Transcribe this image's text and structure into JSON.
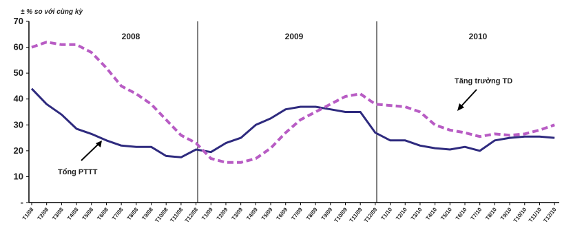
{
  "chart_data": {
    "type": "line",
    "ylabel": "± % so với cùng kỳ",
    "ylim": [
      0,
      70
    ],
    "yticks": [
      "-",
      "10",
      "20",
      "30",
      "40",
      "50",
      "60",
      "70"
    ],
    "year_labels": [
      "2008",
      "2009",
      "2010"
    ],
    "x": [
      "T1/08",
      "T2/08",
      "T3/08",
      "T4/08",
      "T5/08",
      "T6/08",
      "T7/08",
      "T8/08",
      "T9/08",
      "T10/08",
      "T11/08",
      "T12/08",
      "T1/09",
      "T2/09",
      "T3/09",
      "T4/09",
      "T5/09",
      "T6/09",
      "T7/09",
      "T8/09",
      "T9/09",
      "T10/09",
      "T11/09",
      "T12/09",
      "T1/10",
      "T2/10",
      "T3/10",
      "T4/10",
      "T5/10",
      "T6/10",
      "T7/10",
      "T8/10",
      "T9/10",
      "T10/10",
      "T11/10",
      "T12/10"
    ],
    "series": [
      {
        "name": "Tổng PTTT",
        "color": "#2e2a7e",
        "style": "solid",
        "values": [
          44,
          38,
          34,
          28.5,
          26.5,
          24,
          22,
          21.5,
          21.5,
          18,
          17.5,
          20.5,
          19.5,
          23,
          25,
          30,
          32.5,
          36,
          37,
          37,
          36,
          35,
          35,
          27,
          24,
          24,
          22,
          21,
          20.5,
          21.5,
          20,
          24,
          25,
          25.5,
          25.5,
          25
        ]
      },
      {
        "name": "Tăng trưởng TD",
        "color": "#b85cc4",
        "style": "dashed",
        "values": [
          60,
          62,
          61,
          61,
          58,
          52,
          45,
          42,
          38,
          32,
          26,
          23,
          17,
          15.5,
          15.5,
          17,
          21,
          27,
          32,
          35,
          38,
          41,
          42,
          38,
          37.5,
          37,
          35,
          30,
          28,
          27,
          25.5,
          26.5,
          26,
          26.5,
          28,
          30
        ]
      }
    ],
    "annotations": [
      {
        "text": "Tổng PTTT",
        "series": "Tổng PTTT"
      },
      {
        "text": "Tăng trưởng TD",
        "series": "Tăng trưởng TD"
      }
    ]
  }
}
